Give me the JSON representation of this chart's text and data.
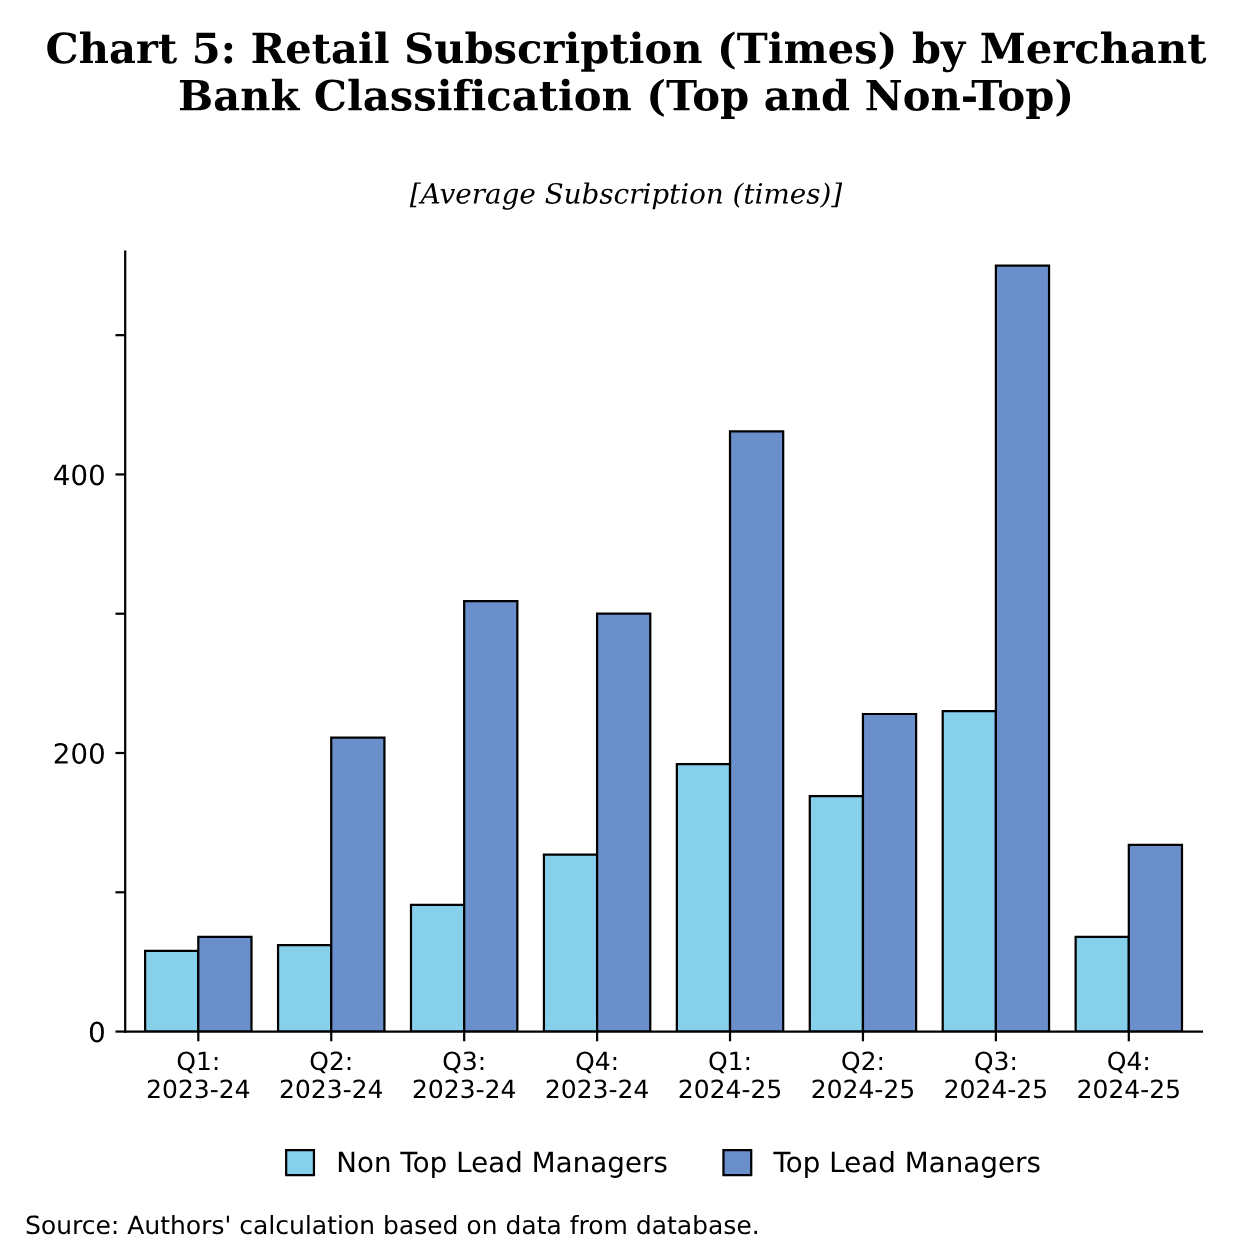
{
  "chart_data": {
    "type": "bar",
    "title": "Chart 5: Retail Subscription (Times) by Merchant Bank Classification (Top and Non-Top)",
    "subtitle": "[Average Subscription (times)]",
    "categories": [
      "Q1:\n2023-24",
      "Q2:\n2023-24",
      "Q3:\n2023-24",
      "Q4:\n2023-24",
      "Q1:\n2024-25",
      "Q2:\n2024-25",
      "Q3:\n2024-25",
      "Q4:\n2024-25"
    ],
    "series": [
      {
        "name": "Non Top Lead Managers",
        "color": "#87d0ec",
        "values": [
          58,
          62,
          91,
          127,
          192,
          169,
          230,
          68
        ]
      },
      {
        "name": "Top Lead Managers",
        "color": "#6b8fcb",
        "values": [
          68,
          211,
          309,
          300,
          431,
          228,
          550,
          134
        ]
      }
    ],
    "ylim": [
      0,
      560
    ],
    "yticks": [
      0,
      {
        "value": 100,
        "label": null
      },
      200,
      {
        "value": 300,
        "label": null
      },
      400,
      {
        "value": 500,
        "label": null
      }
    ],
    "grid": false,
    "legend": "bottom",
    "annotations": [
      "Source: Authors' calculation based on data from database."
    ]
  }
}
